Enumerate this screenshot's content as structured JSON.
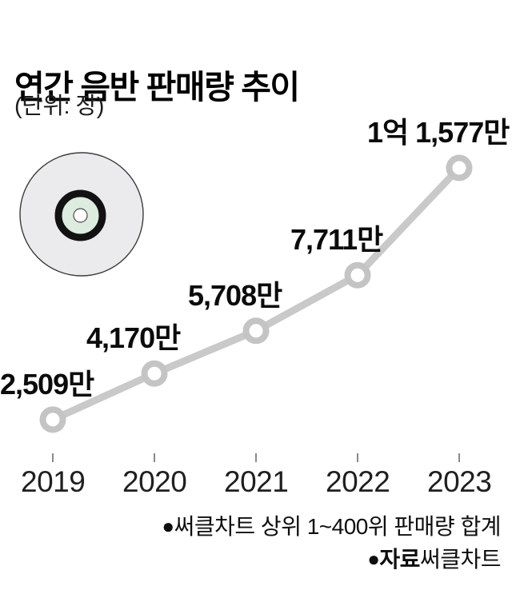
{
  "header": {
    "title": "연간 음반 판매량 추이",
    "unit_label": "(단위: 장)"
  },
  "chart_data": {
    "type": "line",
    "title": "연간 음반 판매량 추이",
    "unit": "장",
    "categories": [
      "2019",
      "2020",
      "2021",
      "2022",
      "2023"
    ],
    "values": [
      25090000,
      41700000,
      57080000,
      77110000,
      115770000
    ],
    "values_10k": [
      2509,
      4170,
      5708,
      7711,
      11577
    ],
    "point_labels": [
      "2,509만",
      "4,170만",
      "5,708만",
      "7,711만",
      "1억 1,577만"
    ],
    "xlabel": "",
    "ylabel": "",
    "ylim_10k": [
      0,
      12600
    ],
    "grid": false,
    "legend_position": "none",
    "line_color": "#c9c9c9",
    "marker_color": "#c4c4c4",
    "marker_style": "open-circle",
    "tick_color": "#8a8a8a"
  },
  "footer": {
    "bullet": "●",
    "note": "써클차트 상위 1~400위 판매량 합계",
    "source_label": "자료",
    "source_value": "써클차트"
  },
  "icon": {
    "name": "cd-disc",
    "colors": {
      "disc": "#ebebee",
      "outline": "#3b3b3b",
      "ring": "#121212",
      "label": "#dcecdf",
      "hole": "#ffffff",
      "hole_outline": "#4a4a4a"
    }
  }
}
